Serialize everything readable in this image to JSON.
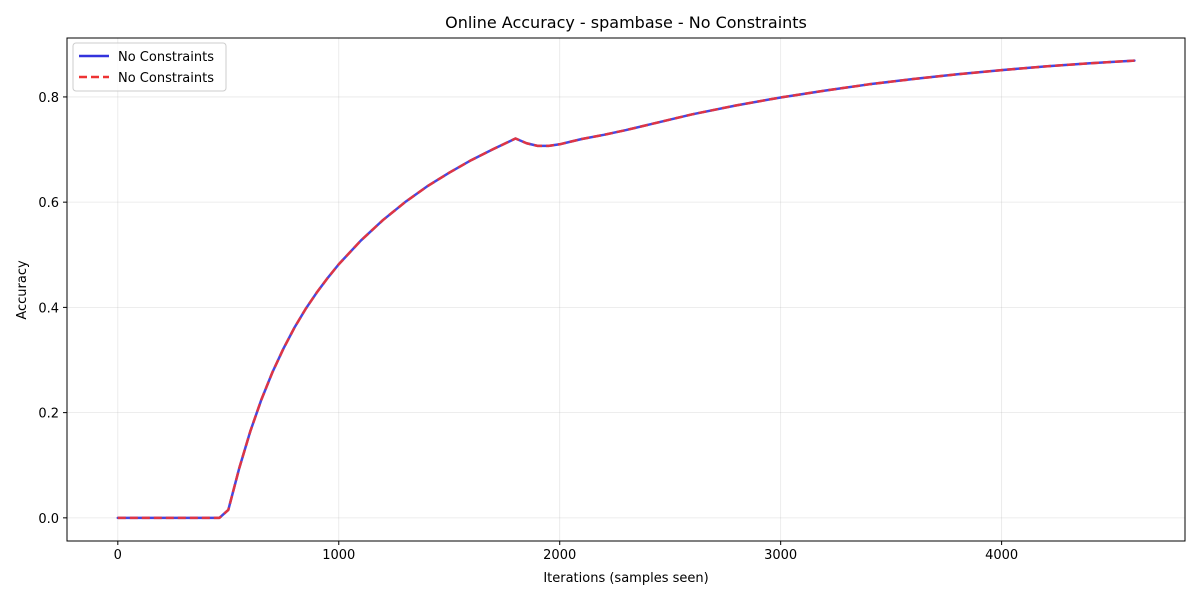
{
  "chart_data": {
    "type": "line",
    "title": "Online Accuracy - spambase - No Constraints",
    "xlabel": "Iterations (samples seen)",
    "ylabel": "Accuracy",
    "xlim": [
      -230,
      4830
    ],
    "ylim": [
      -0.044,
      0.912
    ],
    "xticks": [
      0,
      1000,
      2000,
      3000,
      4000
    ],
    "xtick_labels": [
      "0",
      "1000",
      "2000",
      "3000",
      "4000"
    ],
    "yticks": [
      0.0,
      0.2,
      0.4,
      0.6,
      0.8
    ],
    "ytick_labels": [
      "0.0",
      "0.2",
      "0.4",
      "0.6",
      "0.8"
    ],
    "grid": true,
    "legend_position": "top-left",
    "series": [
      {
        "name": "No Constraints",
        "color": "#3333dd",
        "line_style": "solid",
        "x": [
          0,
          100,
          200,
          300,
          400,
          460,
          500,
          550,
          600,
          650,
          700,
          750,
          800,
          850,
          900,
          950,
          1000,
          1100,
          1200,
          1300,
          1400,
          1500,
          1600,
          1700,
          1800,
          1850,
          1900,
          1950,
          2000,
          2050,
          2100,
          2200,
          2300,
          2400,
          2600,
          2800,
          3000,
          3200,
          3400,
          3600,
          3800,
          4000,
          4200,
          4400,
          4601
        ],
        "values": [
          0.0,
          0.0,
          0.0,
          0.0,
          0.0,
          0.0,
          0.015,
          0.095,
          0.165,
          0.225,
          0.277,
          0.322,
          0.362,
          0.397,
          0.428,
          0.456,
          0.482,
          0.527,
          0.566,
          0.6,
          0.63,
          0.656,
          0.68,
          0.701,
          0.721,
          0.712,
          0.707,
          0.707,
          0.71,
          0.715,
          0.72,
          0.728,
          0.737,
          0.747,
          0.767,
          0.784,
          0.799,
          0.812,
          0.824,
          0.834,
          0.843,
          0.851,
          0.858,
          0.864,
          0.869
        ]
      },
      {
        "name": "No Constraints",
        "color": "#ee3333",
        "line_style": "dashed",
        "x": [
          0,
          100,
          200,
          300,
          400,
          460,
          500,
          550,
          600,
          650,
          700,
          750,
          800,
          850,
          900,
          950,
          1000,
          1100,
          1200,
          1300,
          1400,
          1500,
          1600,
          1700,
          1800,
          1850,
          1900,
          1950,
          2000,
          2050,
          2100,
          2200,
          2300,
          2400,
          2600,
          2800,
          3000,
          3200,
          3400,
          3600,
          3800,
          4000,
          4200,
          4400,
          4601
        ],
        "values": [
          0.0,
          0.0,
          0.0,
          0.0,
          0.0,
          0.0,
          0.015,
          0.095,
          0.165,
          0.225,
          0.277,
          0.322,
          0.362,
          0.397,
          0.428,
          0.456,
          0.482,
          0.527,
          0.566,
          0.6,
          0.63,
          0.656,
          0.68,
          0.701,
          0.721,
          0.712,
          0.707,
          0.707,
          0.71,
          0.715,
          0.72,
          0.728,
          0.737,
          0.747,
          0.767,
          0.784,
          0.799,
          0.812,
          0.824,
          0.834,
          0.843,
          0.851,
          0.858,
          0.864,
          0.869
        ]
      }
    ]
  }
}
